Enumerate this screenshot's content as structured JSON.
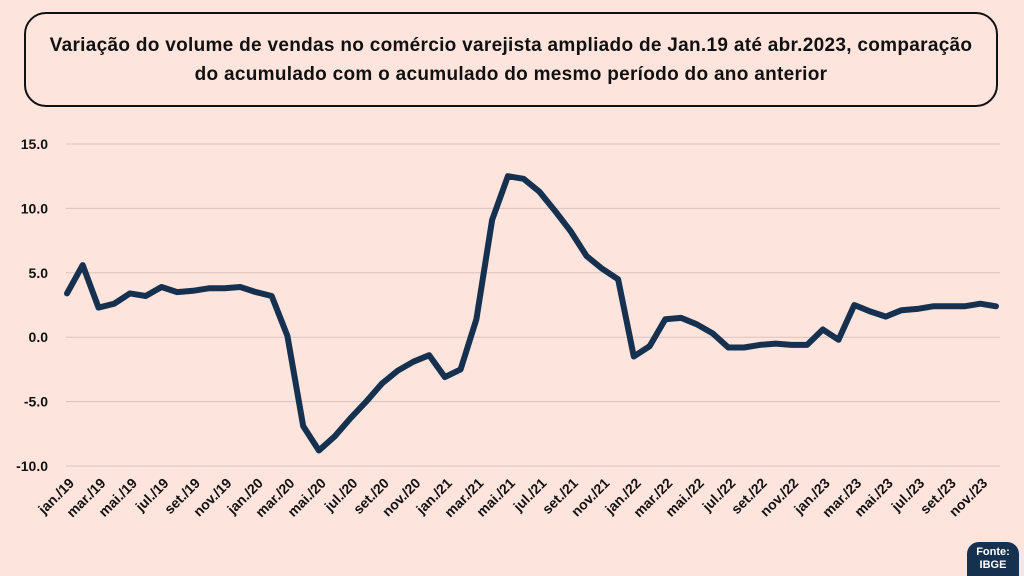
{
  "chart_data": {
    "type": "line",
    "title": "Variação do volume de vendas no comércio varejista ampliado de Jan.19 até abr.2023, comparação do acumulado com o acumulado do mesmo período do ano anterior",
    "xlabel": "",
    "ylabel": "",
    "ylim": [
      -10,
      15
    ],
    "y_ticks": [
      "15.0",
      "10.0",
      "5.0",
      "0.0",
      "-5.0",
      "-10.0"
    ],
    "grid": true,
    "line_color": "#15314f",
    "x_tick_labels": [
      "jan./19",
      "mar./19",
      "mai./19",
      "jul./19",
      "set./19",
      "nov./19",
      "jan./20",
      "mar./20",
      "mai./20",
      "jul./20",
      "set./20",
      "nov./20",
      "jan./21",
      "mar./21",
      "mai./21",
      "jul./21",
      "set./21",
      "nov./21",
      "jan./22",
      "mar./22",
      "mai./22",
      "jul./22",
      "set./22",
      "nov./22",
      "jan./23",
      "mar./23",
      "mai./23",
      "jul./23",
      "set./23",
      "nov./23"
    ],
    "series": [
      {
        "values": [
          3.4,
          5.6,
          2.3,
          2.6,
          3.4,
          3.2,
          3.9,
          3.5,
          3.6,
          3.8,
          3.8,
          3.9,
          3.5,
          3.2,
          0.1,
          -6.9,
          -8.8,
          -7.7,
          -6.3,
          -5.0,
          -3.6,
          -2.6,
          -1.9,
          -1.4,
          -3.1,
          -2.5,
          1.4,
          9.1,
          12.5,
          12.3,
          11.3,
          9.8,
          8.2,
          6.3,
          5.3,
          4.5,
          -1.5,
          -0.7,
          1.4,
          1.5,
          1.0,
          0.3,
          -0.8,
          -0.8,
          -0.6,
          -0.5,
          -0.6,
          -0.6,
          0.6,
          -0.2,
          2.5,
          2.0,
          1.6,
          2.1,
          2.2,
          2.4,
          2.4,
          2.4,
          2.6,
          2.4
        ]
      }
    ]
  },
  "source": {
    "line1": "Fonte:",
    "line2": "IBGE"
  }
}
